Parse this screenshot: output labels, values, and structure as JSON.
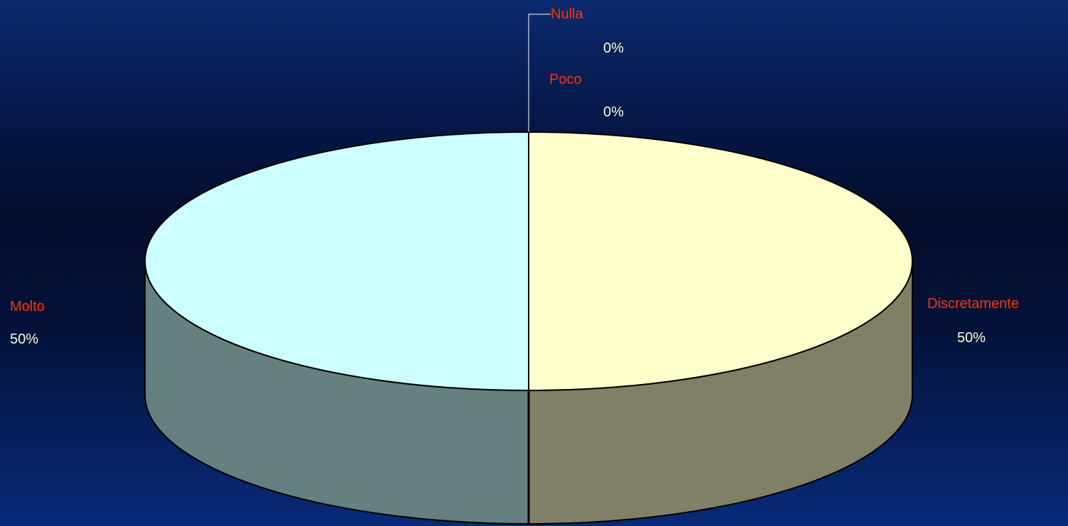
{
  "chart_data": {
    "type": "pie",
    "three_d": true,
    "categories": [
      "Nulla",
      "Poco",
      "Discretamente",
      "Molto"
    ],
    "values": [
      0,
      0,
      50,
      50
    ],
    "value_labels": [
      "0%",
      "0%",
      "50%",
      "50%"
    ],
    "slices": [
      {
        "label": "Nulla",
        "value": 0,
        "pct_label": "0%",
        "top_color": "#ccccff",
        "side_color": "#7a7aa0"
      },
      {
        "label": "Poco",
        "value": 0,
        "pct_label": "0%",
        "top_color": "#ffcccc",
        "side_color": "#a07a7a"
      },
      {
        "label": "Discretamente",
        "value": 50,
        "pct_label": "50%",
        "top_color": "#ffffcc",
        "side_color": "#808066"
      },
      {
        "label": "Molto",
        "value": 50,
        "pct_label": "50%",
        "top_color": "#ccffff",
        "side_color": "#668080"
      }
    ],
    "legend": "none",
    "label_color": "#ff3300",
    "value_color": "#ffffcc"
  }
}
